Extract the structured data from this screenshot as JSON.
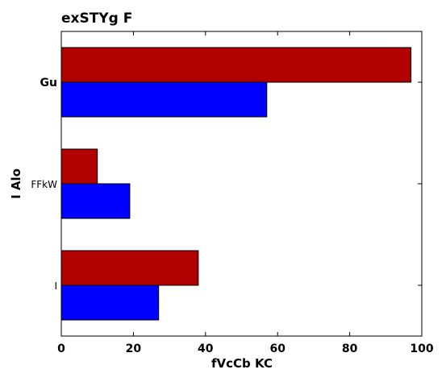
{
  "chart_data": {
    "type": "bar",
    "orientation": "horizontal",
    "title": "exSTYg F",
    "xlabel": "fVcCb KC",
    "ylabel": "I   Alo",
    "categories": [
      "I",
      "FFkW",
      "Gu"
    ],
    "series": [
      {
        "color": "#0000ff",
        "values": [
          27,
          19,
          57
        ]
      },
      {
        "color": "#b00000",
        "values": [
          38,
          10,
          97
        ]
      }
    ],
    "xlim": [
      0,
      100
    ],
    "xticks": [
      "0",
      "20",
      "40",
      "60",
      "80",
      "100"
    ],
    "grid": false,
    "legend": "none"
  }
}
